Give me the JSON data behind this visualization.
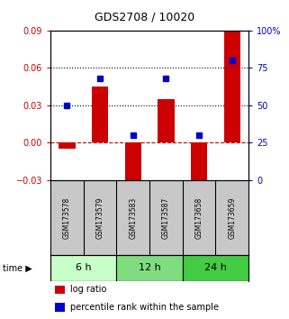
{
  "title": "GDS2708 / 10020",
  "samples": [
    "GSM173578",
    "GSM173579",
    "GSM173583",
    "GSM173587",
    "GSM173658",
    "GSM173659"
  ],
  "log_ratio": [
    -0.005,
    0.045,
    -0.04,
    0.035,
    -0.04,
    0.09
  ],
  "percentile_rank": [
    50,
    68,
    30,
    68,
    30,
    80
  ],
  "left_ylim": [
    -0.03,
    0.09
  ],
  "right_ylim": [
    0,
    100
  ],
  "left_yticks": [
    -0.03,
    0,
    0.03,
    0.06,
    0.09
  ],
  "right_yticks": [
    0,
    25,
    50,
    75,
    100
  ],
  "right_yticklabels": [
    "0",
    "25",
    "50",
    "75",
    "100%"
  ],
  "dotted_lines": [
    0.03,
    0.06
  ],
  "time_groups": [
    {
      "label": "6 h",
      "start": 0,
      "end": 2,
      "color": "#c8ffc8"
    },
    {
      "label": "12 h",
      "start": 2,
      "end": 4,
      "color": "#7fdd7f"
    },
    {
      "label": "24 h",
      "start": 4,
      "end": 6,
      "color": "#44cc44"
    }
  ],
  "bar_color": "#cc0000",
  "dot_color": "#0000cc",
  "bar_width": 0.5,
  "sample_bg_color": "#c8c8c8",
  "zero_line_color": "#cc0000",
  "left_tick_color": "#cc0000",
  "right_tick_color": "#0000cc",
  "legend_bar_label": "log ratio",
  "legend_dot_label": "percentile rank within the sample",
  "background_color": "#ffffff"
}
